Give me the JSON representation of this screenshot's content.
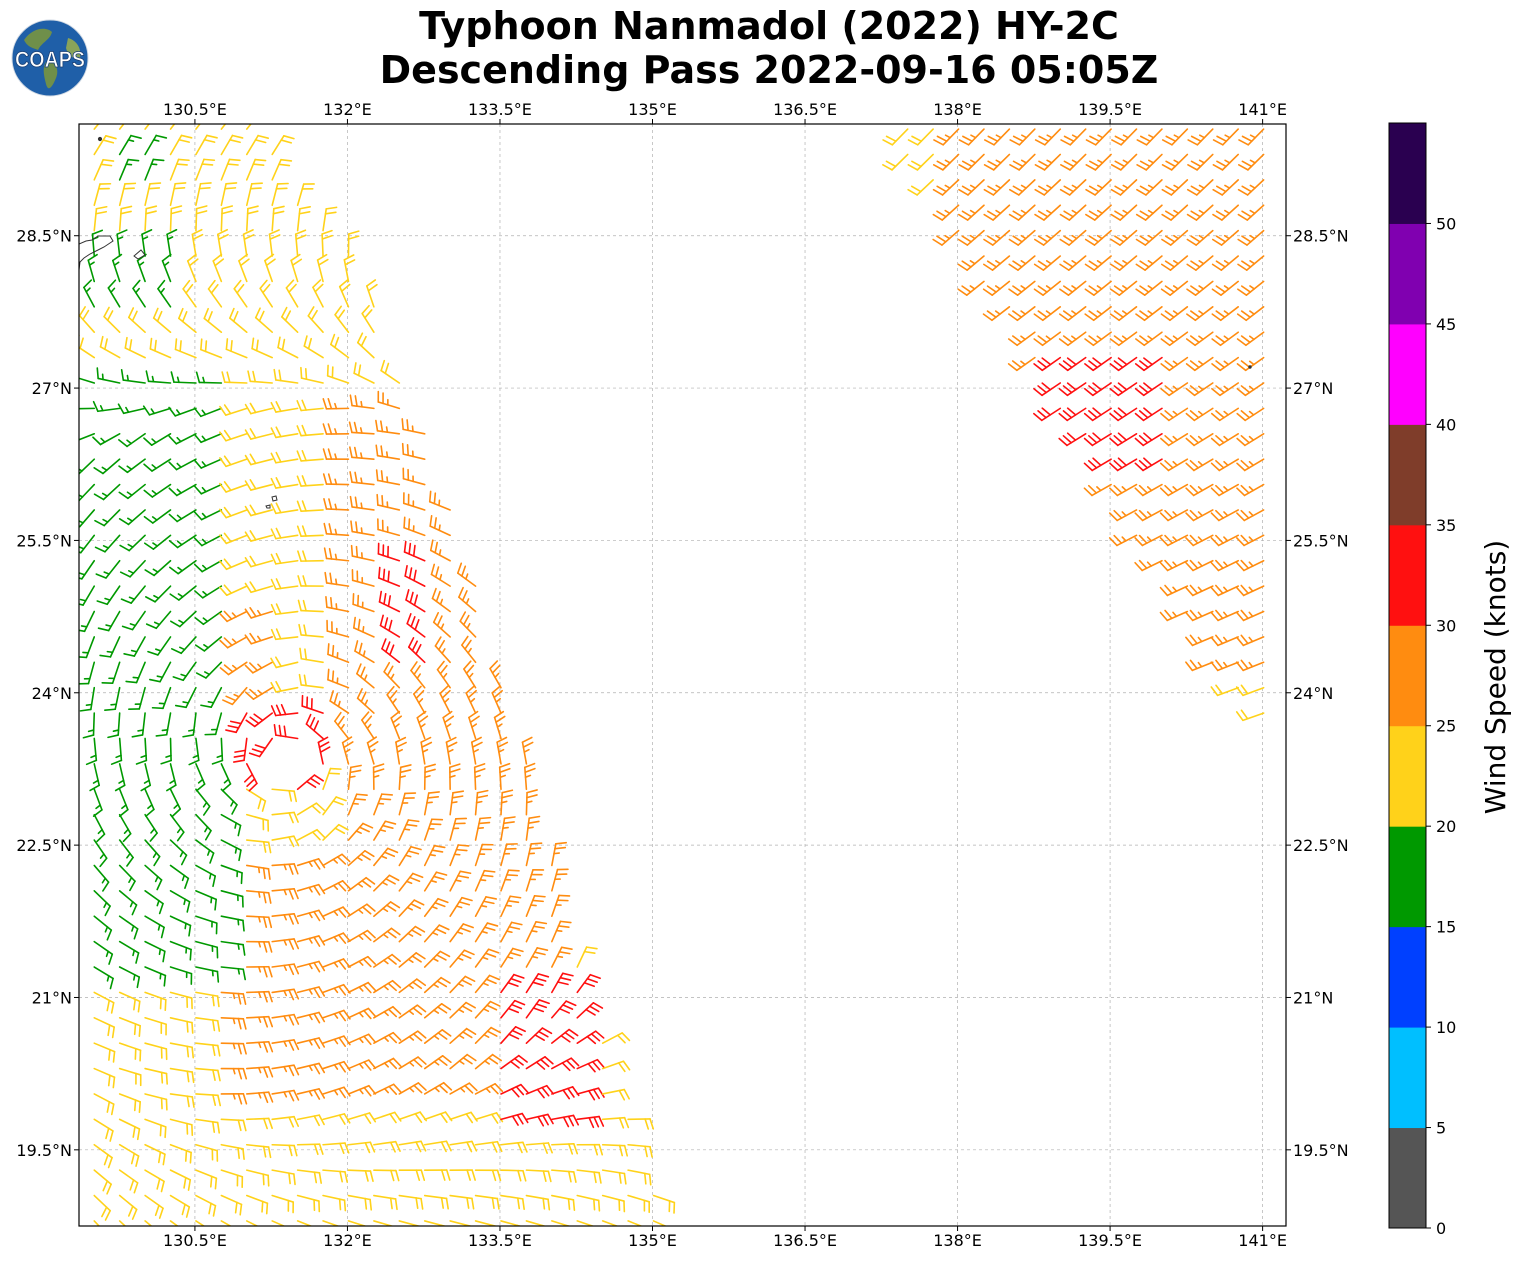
{
  "title": {
    "line1": "Typhoon Nanmadol (2022) HY-2C",
    "line2": "Descending Pass 2022-09-16 05:05Z"
  },
  "logo": {
    "text": "COAPS",
    "ocean_color": "#1f5fa8",
    "land_color": "#6f8f4a",
    "text_color": "#ffffff"
  },
  "map": {
    "lon_range": [
      129.36,
      141.23
    ],
    "lat_range": [
      18.75,
      29.6
    ],
    "lon_ticks": [
      "130.5°E",
      "132°E",
      "133.5°E",
      "135°E",
      "136.5°E",
      "138°E",
      "139.5°E",
      "141°E"
    ],
    "lat_ticks": [
      "28.5°N",
      "27°N",
      "25.5°N",
      "24°N",
      "22.5°N",
      "21°N",
      "19.5°N"
    ],
    "grid": "dashed gray"
  },
  "colorbar": {
    "label": "Wind Speed (knots)",
    "ticks": [
      "0",
      "5",
      "10",
      "15",
      "20",
      "25",
      "30",
      "35",
      "40",
      "45",
      "50"
    ],
    "bins": [
      {
        "range": [
          0,
          5
        ],
        "color": "#555555"
      },
      {
        "range": [
          5,
          10
        ],
        "color": "#00bfff"
      },
      {
        "range": [
          10,
          15
        ],
        "color": "#0040ff"
      },
      {
        "range": [
          15,
          20
        ],
        "color": "#009900"
      },
      {
        "range": [
          20,
          25
        ],
        "color": "#ffd21a"
      },
      {
        "range": [
          25,
          30
        ],
        "color": "#ff8c10"
      },
      {
        "range": [
          30,
          35
        ],
        "color": "#ff1010"
      },
      {
        "range": [
          35,
          40
        ],
        "color": "#7f3d2a"
      },
      {
        "range": [
          40,
          45
        ],
        "color": "#ff00ff"
      },
      {
        "range": [
          45,
          50
        ],
        "color": "#8000b0"
      },
      {
        "range": [
          50,
          55
        ],
        "color": "#2a0050"
      }
    ]
  },
  "swaths": [
    {
      "name": "western swath",
      "polygon_lonlat": [
        [
          129.36,
          29.6
        ],
        [
          131.0,
          29.6
        ],
        [
          131.9,
          28.6
        ],
        [
          132.5,
          27.3
        ],
        [
          133.1,
          25.7
        ],
        [
          133.5,
          24.3
        ],
        [
          133.9,
          22.9
        ],
        [
          134.4,
          21.0
        ],
        [
          134.85,
          19.6
        ],
        [
          135.15,
          18.75
        ],
        [
          129.36,
          18.75
        ]
      ],
      "center_lonlat": [
        131.4,
        23.35
      ],
      "center_radius_deg": 1.0
    },
    {
      "name": "eastern swath",
      "polygon_lonlat": [
        [
          137.5,
          29.6
        ],
        [
          141.23,
          29.6
        ],
        [
          141.23,
          23.3
        ],
        [
          140.8,
          23.8
        ],
        [
          140.2,
          24.8
        ],
        [
          139.6,
          25.8
        ],
        [
          139.1,
          26.6
        ],
        [
          138.6,
          27.4
        ],
        [
          138.1,
          28.3
        ],
        [
          137.5,
          29.2
        ]
      ]
    }
  ],
  "wind_regions": [
    {
      "lon": [
        130.3,
        131.4
      ],
      "lat": [
        24.0,
        24.9
      ],
      "speed": 29
    },
    {
      "lon": [
        130.6,
        132.0
      ],
      "lat": [
        23.2,
        24.0
      ],
      "speed": 30
    },
    {
      "lon": [
        131.3,
        131.7
      ],
      "lat": [
        22.9,
        23.7
      ],
      "speed": 33
    },
    {
      "lon": [
        131.9,
        133.8
      ],
      "lat": [
        22.3,
        24.1
      ],
      "speed": 28
    },
    {
      "lon": [
        132.0,
        133.5
      ],
      "lat": [
        24.1,
        26.8
      ],
      "speed": 28
    },
    {
      "lon": [
        132.4,
        132.9
      ],
      "lat": [
        24.3,
        25.5
      ],
      "speed": 32
    },
    {
      "lon": [
        133.1,
        133.6
      ],
      "lat": [
        21.9,
        22.3
      ],
      "speed": 32
    },
    {
      "lon": [
        130.6,
        134.2
      ],
      "lat": [
        20.0,
        22.3
      ],
      "speed": 28
    },
    {
      "lon": [
        133.4,
        134.4
      ],
      "lat": [
        19.6,
        21.2
      ],
      "speed": 32
    },
    {
      "lon": [
        129.36,
        130.9
      ],
      "lat": [
        21.2,
        27.2
      ],
      "speed": 17
    },
    {
      "lon": [
        129.36,
        130.3
      ],
      "lat": [
        27.6,
        28.5
      ],
      "speed": 17
    },
    {
      "lon": [
        129.6,
        130.1
      ],
      "lat": [
        28.9,
        29.3
      ],
      "speed": 17
    },
    {
      "lon": [
        138.0,
        141.23
      ],
      "lat": [
        26.2,
        29.6
      ],
      "speed": 27
    },
    {
      "lon": [
        139.0,
        140.2
      ],
      "lat": [
        25.4,
        27.3
      ],
      "speed": 33
    },
    {
      "lon": [
        139.5,
        141.23
      ],
      "lat": [
        24.2,
        26.1
      ],
      "speed": 28
    }
  ]
}
